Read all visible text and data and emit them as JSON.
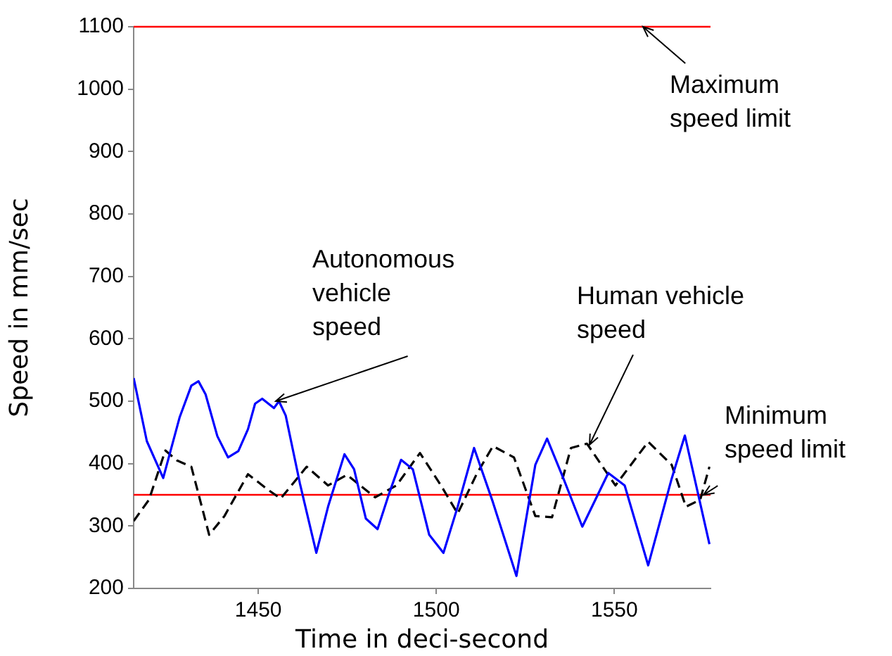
{
  "chart_data": {
    "type": "line",
    "xlabel": "Time in deci-second",
    "ylabel": "Speed in mm/sec",
    "xlim": [
      1415,
      1577
    ],
    "xticks": [
      1450,
      1500,
      1550
    ],
    "ylim": [
      200,
      1100
    ],
    "yticks": [
      200,
      300,
      400,
      500,
      600,
      700,
      800,
      900,
      1000,
      1100
    ],
    "series": [
      {
        "color": "#0000ff",
        "line_style": "solid",
        "x": [
          1415,
          1418.7,
          1423.3,
          1427.9,
          1431.2,
          1433.2,
          1435.2,
          1438.5,
          1441.5,
          1444.4,
          1447.1,
          1449.1,
          1451.1,
          1454.4,
          1455.8,
          1457.7,
          1461.7,
          1466.3,
          1469.6,
          1474.2,
          1476.9,
          1480.2,
          1483.5,
          1486.8,
          1490.1,
          1493.4,
          1498,
          1502,
          1506,
          1510.6,
          1515.9,
          1522.5,
          1527.8,
          1531.1,
          1535.7,
          1541,
          1548.3,
          1552.9,
          1559.5,
          1566.1,
          1569.8,
          1576.7
        ],
        "values": [
          537,
          436,
          377,
          474,
          525,
          532,
          511,
          444,
          410,
          420,
          455,
          496,
          504,
          489,
          500,
          477,
          368,
          257,
          331,
          415,
          391,
          312,
          295,
          353,
          406,
          391,
          286,
          257,
          331,
          425,
          338,
          220,
          398,
          440,
          376,
          299,
          385,
          365,
          237,
          376,
          445,
          271
        ]
      },
      {
        "color": "#000000",
        "line_style": "dashed",
        "x": [
          1415,
          1419.3,
          1423.9,
          1427.2,
          1431.2,
          1436.2,
          1440.5,
          1447.1,
          1453,
          1456.3,
          1463.6,
          1469.6,
          1474.9,
          1482.8,
          1488.8,
          1495.4,
          1501.3,
          1506,
          1511.3,
          1515.9,
          1521.8,
          1527.8,
          1532.5,
          1537.8,
          1542.3,
          1550.3,
          1559.5,
          1566.1,
          1570.1,
          1574.1,
          1576.7
        ],
        "values": [
          308,
          342,
          421,
          405,
          395,
          286,
          316,
          383,
          357,
          344,
          395,
          365,
          382,
          346,
          365,
          417,
          365,
          320,
          383,
          428,
          410,
          316,
          314,
          425,
          432,
          365,
          435,
          398,
          331,
          342,
          395
        ]
      }
    ],
    "ref_lines": [
      {
        "axis": "y",
        "value": 1100,
        "label": "Maximum speed limit",
        "color": "#ff0000"
      },
      {
        "axis": "y",
        "value": 350,
        "label": "Minimum speed limit",
        "color": "#ff0000"
      }
    ],
    "annotations": [
      {
        "text": "Autonomous vehicle speed",
        "x": 1455,
        "y": 500
      },
      {
        "text": "Human vehicle speed",
        "x": 1543,
        "y": 430
      }
    ]
  }
}
